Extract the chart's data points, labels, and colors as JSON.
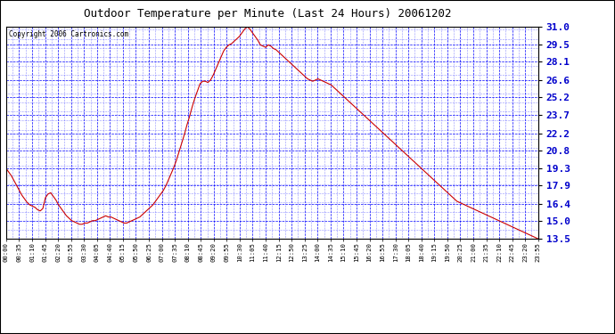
{
  "title": "Outdoor Temperature per Minute (Last 24 Hours) 20061202",
  "copyright": "Copyright 2006 Cartronics.com",
  "background_color": "#ffffff",
  "plot_bg_color": "#ffffff",
  "grid_color": "#0000ff",
  "line_color": "#cc0000",
  "title_color": "#000000",
  "yticks": [
    13.5,
    15.0,
    16.4,
    17.9,
    19.3,
    20.8,
    22.2,
    23.7,
    25.2,
    26.6,
    28.1,
    29.5,
    31.0
  ],
  "ymin": 13.5,
  "ymax": 31.0,
  "x_tick_labels": [
    "00:00",
    "00:35",
    "01:10",
    "01:45",
    "02:20",
    "02:55",
    "03:30",
    "04:05",
    "04:40",
    "05:15",
    "05:50",
    "06:25",
    "07:00",
    "07:35",
    "08:10",
    "08:45",
    "09:20",
    "09:55",
    "10:30",
    "11:05",
    "11:40",
    "12:15",
    "12:50",
    "13:25",
    "14:00",
    "14:35",
    "15:10",
    "15:45",
    "16:20",
    "16:55",
    "17:30",
    "18:05",
    "18:40",
    "19:15",
    "19:50",
    "20:25",
    "21:00",
    "21:35",
    "22:10",
    "22:45",
    "23:20",
    "23:55"
  ],
  "temp_data": [
    19.3,
    19.0,
    18.7,
    18.3,
    17.9,
    17.5,
    17.1,
    16.8,
    16.5,
    16.3,
    16.2,
    16.1,
    15.9,
    15.8,
    16.0,
    16.9,
    17.2,
    17.3,
    17.0,
    16.7,
    16.3,
    16.0,
    15.7,
    15.4,
    15.2,
    15.0,
    14.9,
    14.8,
    14.7,
    14.7,
    14.8,
    14.8,
    14.9,
    15.0,
    15.0,
    15.1,
    15.2,
    15.3,
    15.4,
    15.3,
    15.3,
    15.2,
    15.1,
    15.0,
    14.9,
    14.8,
    14.8,
    14.9,
    15.0,
    15.1,
    15.2,
    15.3,
    15.5,
    15.7,
    15.9,
    16.1,
    16.3,
    16.6,
    16.9,
    17.2,
    17.5,
    17.9,
    18.4,
    18.9,
    19.4,
    20.0,
    20.7,
    21.4,
    22.1,
    22.9,
    23.6,
    24.4,
    25.1,
    25.7,
    26.3,
    26.5,
    26.5,
    26.4,
    26.6,
    27.0,
    27.5,
    28.0,
    28.5,
    29.0,
    29.3,
    29.5,
    29.6,
    29.8,
    30.0,
    30.2,
    30.5,
    30.8,
    31.0,
    30.8,
    30.5,
    30.2,
    29.9,
    29.5,
    29.4,
    29.3,
    29.5,
    29.4,
    29.2,
    29.1,
    28.9,
    28.7,
    28.5,
    28.3,
    28.1,
    27.9,
    27.7,
    27.5,
    27.3,
    27.1,
    26.9,
    26.7,
    26.6,
    26.5,
    26.6,
    26.7,
    26.6,
    26.5,
    26.4,
    26.3,
    26.2,
    26.0,
    25.8,
    25.6,
    25.4,
    25.2,
    25.0,
    24.8,
    24.6,
    24.4,
    24.2,
    24.0,
    23.8,
    23.6,
    23.4,
    23.2,
    23.0,
    22.8,
    22.6,
    22.4,
    22.2,
    22.0,
    21.8,
    21.6,
    21.4,
    21.2,
    21.0,
    20.8,
    20.6,
    20.4,
    20.2,
    20.0,
    19.8,
    19.6,
    19.4,
    19.2,
    19.0,
    18.8,
    18.6,
    18.4,
    18.2,
    18.0,
    17.8,
    17.6,
    17.4,
    17.2,
    17.0,
    16.8,
    16.6,
    16.5,
    16.4,
    16.3,
    16.2,
    16.1,
    16.0,
    15.9,
    15.8,
    15.7,
    15.6,
    15.5,
    15.4,
    15.3,
    15.2,
    15.1,
    15.0,
    14.9,
    14.8,
    14.7,
    14.6,
    14.5,
    14.4,
    14.3,
    14.2,
    14.1,
    14.0,
    13.9,
    13.8,
    13.7,
    13.6,
    13.5
  ]
}
